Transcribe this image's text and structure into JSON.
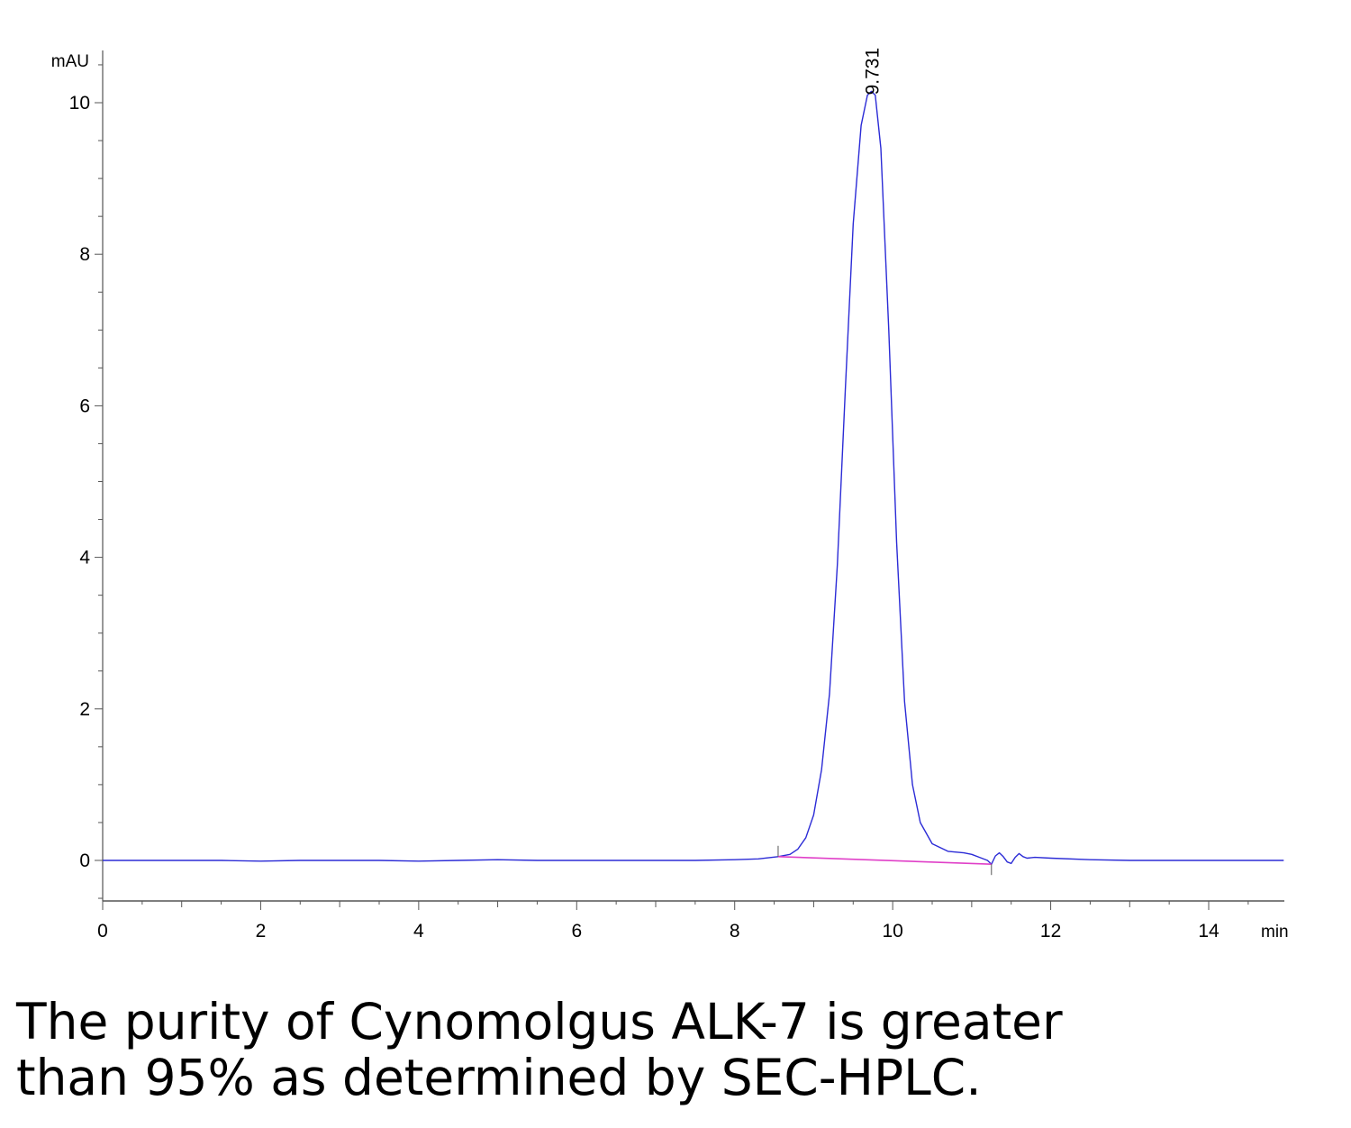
{
  "chart_data": {
    "type": "line",
    "y_unit_label": "mAU",
    "x_unit_label": "min",
    "xlim": [
      0,
      14.95
    ],
    "ylim": [
      -0.55,
      10.7
    ],
    "x_ticks": [
      0,
      2,
      4,
      6,
      8,
      10,
      12,
      14
    ],
    "y_ticks": [
      0,
      2,
      4,
      6,
      8,
      10
    ],
    "series": [
      {
        "color": "#2b2bd6",
        "x": [
          0,
          0.5,
          1,
          1.5,
          2,
          2.5,
          3,
          3.5,
          4,
          4.5,
          5,
          5.5,
          6,
          6.5,
          7,
          7.5,
          8,
          8.3,
          8.55,
          8.7,
          8.8,
          8.9,
          9.0,
          9.1,
          9.2,
          9.3,
          9.4,
          9.5,
          9.6,
          9.68,
          9.73,
          9.78,
          9.85,
          9.95,
          10.05,
          10.15,
          10.25,
          10.35,
          10.5,
          10.7,
          10.9,
          11.0,
          11.1,
          11.2,
          11.25,
          11.3,
          11.35,
          11.4,
          11.45,
          11.5,
          11.55,
          11.6,
          11.65,
          11.7,
          11.8,
          12.0,
          12.5,
          13,
          13.5,
          14,
          14.5,
          14.95
        ],
        "y": [
          0.0,
          0.0,
          0.0,
          0.0,
          -0.01,
          0.0,
          0.0,
          0.0,
          -0.01,
          0.0,
          0.01,
          0.0,
          0.0,
          0.0,
          0.0,
          0.0,
          0.01,
          0.02,
          0.05,
          0.08,
          0.15,
          0.3,
          0.6,
          1.2,
          2.2,
          3.9,
          6.2,
          8.4,
          9.7,
          10.1,
          10.15,
          10.1,
          9.4,
          7.0,
          4.2,
          2.1,
          1.0,
          0.5,
          0.22,
          0.12,
          0.1,
          0.08,
          0.04,
          0.0,
          -0.05,
          0.06,
          0.1,
          0.05,
          -0.02,
          -0.04,
          0.04,
          0.09,
          0.05,
          0.03,
          0.04,
          0.03,
          0.01,
          0.0,
          0.0,
          0.0,
          0.0,
          0.0
        ]
      }
    ],
    "baseline": {
      "color": "#e040c8",
      "x": [
        8.55,
        11.25
      ],
      "y": [
        0.05,
        -0.05
      ]
    },
    "peak_label": {
      "text": "9.731",
      "x": 9.731,
      "y": 10.15
    }
  },
  "caption": {
    "line1": "The purity of Cynomolgus ALK-7 is greater",
    "line2": "than 95% as determined by SEC-HPLC."
  }
}
